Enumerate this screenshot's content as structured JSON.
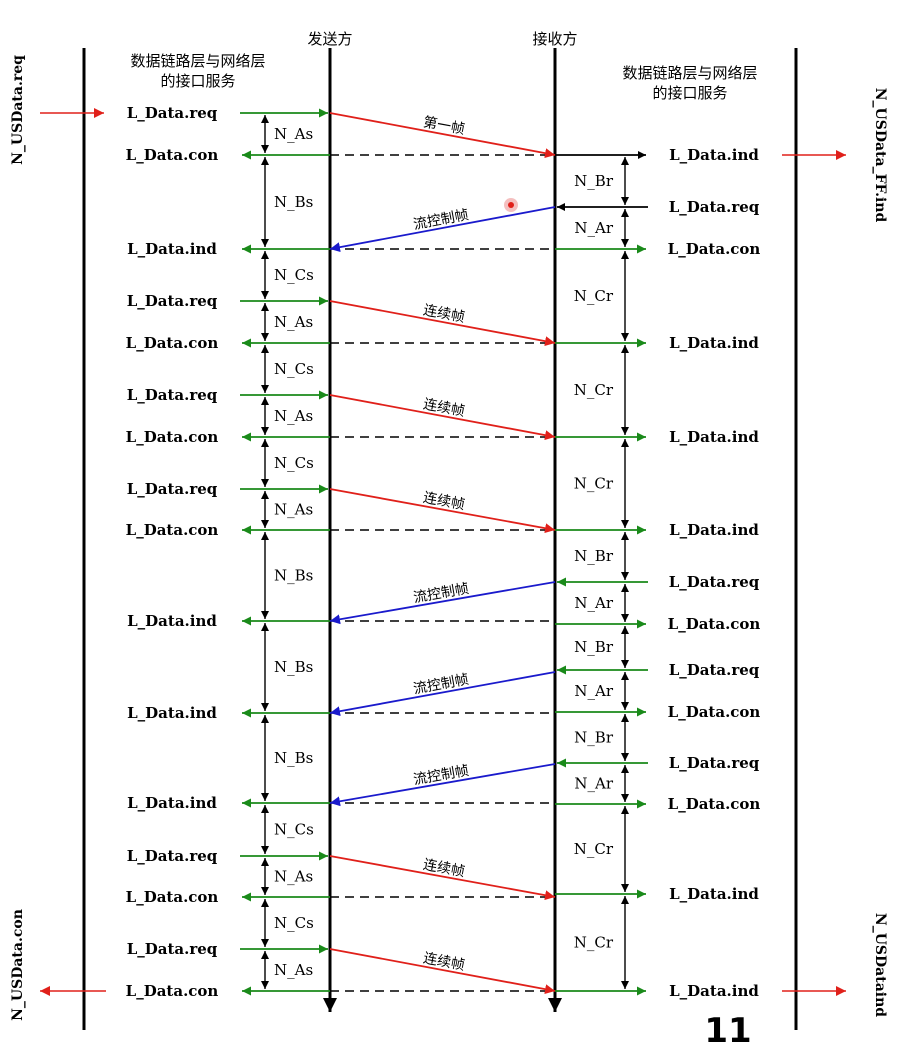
{
  "header": {
    "sender": "发送方",
    "receiver": "接收方",
    "left_service": [
      "数据链路层与网络层",
      "的接口服务"
    ],
    "right_service": [
      "数据链路层与网络层",
      "的接口服务"
    ]
  },
  "side_labels": {
    "left_top": "N_USData.req",
    "left_bottom": "N_USData.con",
    "right_top": "N_USData_FF.ind",
    "right_bottom": "N_USDataind"
  },
  "frame_labels": {
    "first": "第一帧",
    "flow_control": "流控制帧",
    "consecutive": "连续帧"
  },
  "left_events": [
    {
      "label": "L_Data.req"
    },
    {
      "label": "L_Data.con"
    },
    {
      "label": "L_Data.ind"
    },
    {
      "label": "L_Data.req"
    },
    {
      "label": "L_Data.con"
    },
    {
      "label": "L_Data.req"
    },
    {
      "label": "L_Data.con"
    },
    {
      "label": "L_Data.req"
    },
    {
      "label": "L_Data.con"
    },
    {
      "label": "L_Data.ind"
    },
    {
      "label": "L_Data.ind"
    },
    {
      "label": "L_Data.ind"
    },
    {
      "label": "L_Data.req"
    },
    {
      "label": "L_Data.con"
    },
    {
      "label": "L_Data.req"
    },
    {
      "label": "L_Data.con"
    }
  ],
  "right_events": [
    {
      "label": "L_Data.ind"
    },
    {
      "label": "L_Data.req"
    },
    {
      "label": "L_Data.con"
    },
    {
      "label": "L_Data.ind"
    },
    {
      "label": "L_Data.ind"
    },
    {
      "label": "L_Data.ind"
    },
    {
      "label": "L_Data.req"
    },
    {
      "label": "L_Data.con"
    },
    {
      "label": "L_Data.req"
    },
    {
      "label": "L_Data.con"
    },
    {
      "label": "L_Data.req"
    },
    {
      "label": "L_Data.con"
    },
    {
      "label": "L_Data.ind"
    },
    {
      "label": "L_Data.ind"
    }
  ],
  "left_timers": [
    {
      "label": "N_As"
    },
    {
      "label": "N_Bs"
    },
    {
      "label": "N_Cs"
    },
    {
      "label": "N_As"
    },
    {
      "label": "N_Cs"
    },
    {
      "label": "N_As"
    },
    {
      "label": "N_Cs"
    },
    {
      "label": "N_As"
    },
    {
      "label": "N_Bs"
    },
    {
      "label": "N_Bs"
    },
    {
      "label": "N_Bs"
    },
    {
      "label": "N_Cs"
    },
    {
      "label": "N_As"
    },
    {
      "label": "N_Cs"
    },
    {
      "label": "N_As"
    }
  ],
  "right_timers": [
    {
      "label": "N_Br"
    },
    {
      "label": "N_Ar"
    },
    {
      "label": "N_Cr"
    },
    {
      "label": "N_Cr"
    },
    {
      "label": "N_Cr"
    },
    {
      "label": "N_Br"
    },
    {
      "label": "N_Ar"
    },
    {
      "label": "N_Br"
    },
    {
      "label": "N_Ar"
    },
    {
      "label": "N_Br"
    },
    {
      "label": "N_Ar"
    },
    {
      "label": "N_Cr"
    },
    {
      "label": "N_Cr"
    }
  ],
  "page_number": "11",
  "colors": {
    "sender_frame": "#e0201a",
    "flow_control": "#1a1acc",
    "service": "#1a8a1a",
    "line": "#000000"
  }
}
